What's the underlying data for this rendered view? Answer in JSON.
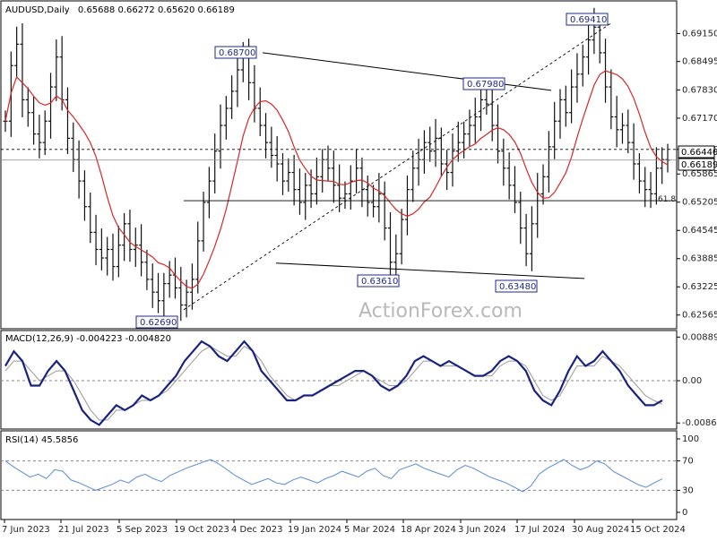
{
  "colors": {
    "bars": "#111111",
    "sma": "#d62728",
    "macd": "#1a237e",
    "signal": "#999999",
    "rsi": "#5b8bd6",
    "line": "#000000"
  },
  "watermark": "ActionForex.com",
  "chart_data": [
    {
      "type": "ohlc",
      "title": "AUDUSD,Daily",
      "ohlc_header": "0.65688 0.66272 0.65620 0.66189",
      "ylim": [
        0.6235,
        0.6985
      ],
      "y_ticks": [
        "0.69150",
        "0.68495",
        "0.67830",
        "0.67170",
        "0.66440",
        "0.65865",
        "0.65205",
        "0.64545",
        "0.63885",
        "0.63225",
        "0.62565"
      ],
      "x_ticks": [
        "7 Jun 2023",
        "21 Jul 2023",
        "5 Sep 2023",
        "19 Oct 2023",
        "4 Dec 2023",
        "19 Jan 2024",
        "5 Mar 2024",
        "18 Apr 2024",
        "3 Jun 2024",
        "17 Jul 2024",
        "30 Aug 2024",
        "15 Oct 2024"
      ],
      "current_price": "0.66189",
      "marked_level": "0.66440",
      "fib_label": "61.8",
      "annotations": [
        {
          "label": "0.68700",
          "date": "Dec 2023",
          "value": 0.687
        },
        {
          "label": "0.67980",
          "date": "Jun 2024",
          "value": 0.6798
        },
        {
          "label": "0.69410",
          "date": "Sep 2024",
          "value": 0.6941
        },
        {
          "label": "0.63610",
          "date": "Apr 2024",
          "value": 0.6361
        },
        {
          "label": "0.63480",
          "date": "Aug 2024",
          "value": 0.6348
        },
        {
          "label": "0.62690",
          "date": "Oct 2023",
          "value": 0.6269
        }
      ],
      "close_series": [
        0.671,
        0.684,
        0.689,
        0.676,
        0.673,
        0.668,
        0.666,
        0.671,
        0.679,
        0.686,
        0.676,
        0.667,
        0.662,
        0.657,
        0.651,
        0.645,
        0.641,
        0.639,
        0.641,
        0.637,
        0.642,
        0.647,
        0.641,
        0.642,
        0.638,
        0.634,
        0.631,
        0.629,
        0.633,
        0.635,
        0.632,
        0.628,
        0.631,
        0.634,
        0.643,
        0.652,
        0.657,
        0.664,
        0.67,
        0.674,
        0.678,
        0.683,
        0.687,
        0.68,
        0.674,
        0.67,
        0.666,
        0.663,
        0.661,
        0.657,
        0.659,
        0.655,
        0.652,
        0.656,
        0.654,
        0.658,
        0.662,
        0.66,
        0.656,
        0.653,
        0.654,
        0.657,
        0.66,
        0.655,
        0.652,
        0.651,
        0.654,
        0.646,
        0.638,
        0.64,
        0.648,
        0.655,
        0.66,
        0.662,
        0.666,
        0.664,
        0.667,
        0.661,
        0.659,
        0.664,
        0.666,
        0.668,
        0.67,
        0.672,
        0.676,
        0.675,
        0.67,
        0.664,
        0.66,
        0.656,
        0.652,
        0.646,
        0.64,
        0.647,
        0.654,
        0.658,
        0.665,
        0.671,
        0.676,
        0.673,
        0.679,
        0.682,
        0.686,
        0.69,
        0.693,
        0.687,
        0.679,
        0.672,
        0.669,
        0.67,
        0.666,
        0.661,
        0.657,
        0.655,
        0.654,
        0.66,
        0.662,
        0.6619
      ]
    },
    {
      "type": "line",
      "title": "MACD(12,26,9) -0.004223 -0.004820",
      "y_ticks": [
        "0.008896",
        "0.00",
        "-0.008612"
      ],
      "ylim": [
        -0.0093,
        0.0095
      ],
      "series": [
        {
          "values": [
            0.003,
            0.006,
            0.004,
            -0.001,
            -0.001,
            0.002,
            0.004,
            0.002,
            -0.002,
            -0.006,
            -0.008,
            -0.009,
            -0.007,
            -0.005,
            -0.006,
            -0.005,
            -0.003,
            -0.004,
            -0.003,
            -0.001,
            0.001,
            0.004,
            0.006,
            0.008,
            0.007,
            0.005,
            0.004,
            0.006,
            0.008,
            0.006,
            0.002,
            0.0,
            -0.002,
            -0.004,
            -0.004,
            -0.003,
            -0.003,
            -0.002,
            -0.001,
            0.0,
            0.001,
            0.002,
            0.002,
            0.001,
            -0.001,
            -0.002,
            -0.001,
            0.001,
            0.004,
            0.005,
            0.004,
            0.003,
            0.004,
            0.003,
            0.002,
            0.001,
            0.001,
            0.002,
            0.004,
            0.005,
            0.004,
            0.002,
            -0.002,
            -0.004,
            -0.005,
            -0.002,
            0.002,
            0.005,
            0.003,
            0.004,
            0.006,
            0.004,
            0.002,
            -0.001,
            -0.003,
            -0.005,
            -0.005,
            -0.004
          ]
        },
        {
          "values": [
            0.002,
            0.004,
            0.004,
            0.002,
            0.0,
            0.001,
            0.002,
            0.002,
            0.0,
            -0.003,
            -0.006,
            -0.008,
            -0.008,
            -0.006,
            -0.006,
            -0.005,
            -0.004,
            -0.004,
            -0.003,
            -0.002,
            0.0,
            0.002,
            0.004,
            0.006,
            0.007,
            0.006,
            0.005,
            0.005,
            0.007,
            0.006,
            0.004,
            0.001,
            -0.001,
            -0.003,
            -0.004,
            -0.003,
            -0.003,
            -0.002,
            -0.001,
            -0.001,
            0.0,
            0.001,
            0.002,
            0.001,
            0.0,
            -0.001,
            -0.001,
            0.0,
            0.002,
            0.004,
            0.004,
            0.003,
            0.003,
            0.003,
            0.002,
            0.001,
            0.001,
            0.001,
            0.003,
            0.004,
            0.004,
            0.003,
            0.0,
            -0.003,
            -0.004,
            -0.003,
            0.0,
            0.003,
            0.003,
            0.003,
            0.005,
            0.004,
            0.003,
            0.001,
            -0.001,
            -0.003,
            -0.004,
            -0.0048
          ]
        }
      ]
    },
    {
      "type": "line",
      "title": "RSI(14) 45.5856",
      "y_ticks": [
        "100",
        "70",
        "30",
        "0"
      ],
      "ylim": [
        0,
        100
      ],
      "levels": [
        70,
        30
      ],
      "values": [
        70,
        62,
        55,
        48,
        52,
        46,
        58,
        56,
        44,
        40,
        35,
        30,
        34,
        38,
        44,
        40,
        48,
        52,
        46,
        42,
        50,
        55,
        60,
        64,
        68,
        72,
        66,
        58,
        50,
        44,
        38,
        42,
        46,
        40,
        38,
        44,
        48,
        44,
        40,
        46,
        50,
        56,
        52,
        48,
        56,
        60,
        50,
        46,
        58,
        62,
        66,
        60,
        56,
        52,
        48,
        58,
        64,
        60,
        54,
        48,
        44,
        40,
        34,
        28,
        36,
        52,
        60,
        66,
        72,
        64,
        58,
        62,
        70,
        66,
        56,
        50,
        44,
        38,
        34,
        40,
        45.6
      ]
    }
  ]
}
